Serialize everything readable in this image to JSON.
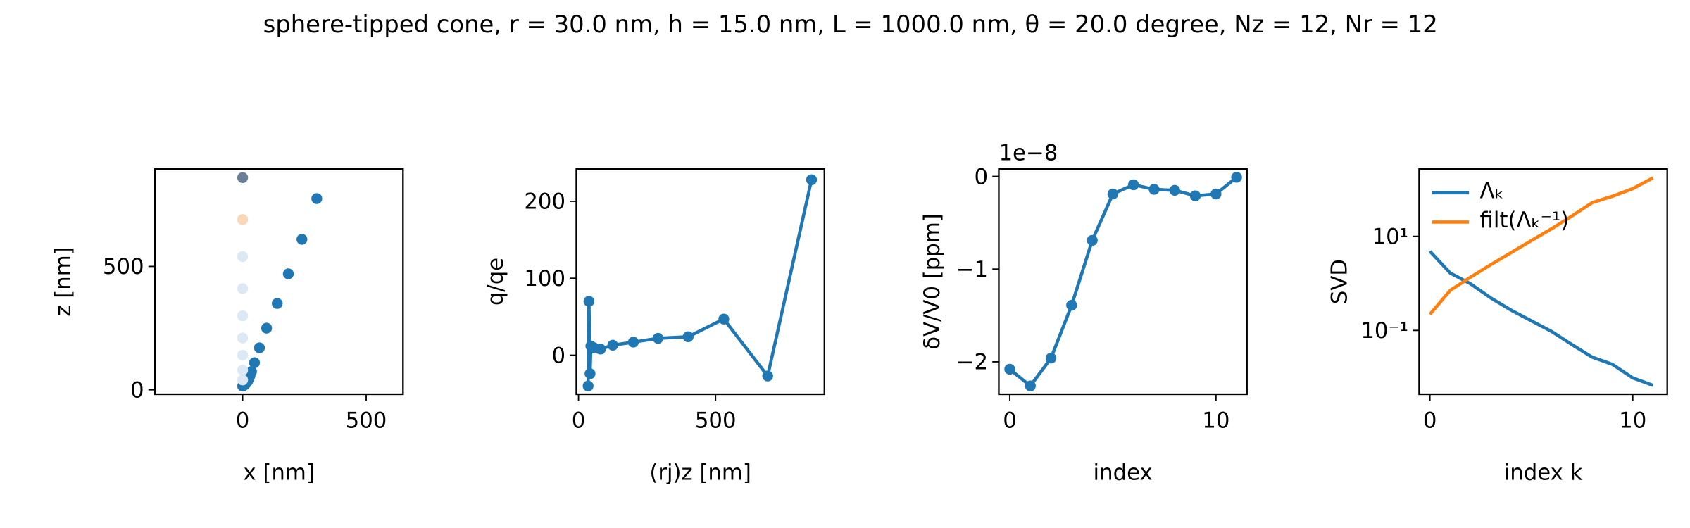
{
  "title": "sphere-tipped cone, r = 30.0 nm, h = 15.0 nm, L = 1000.0 nm, θ = 20.0 degree, Nz = 12, Nr = 12",
  "chart_data": [
    {
      "type": "scatter",
      "xlabel": "x [nm]",
      "ylabel": "z [nm]",
      "xlim": [
        -355,
        649
      ],
      "ylim": [
        -18,
        895
      ],
      "xticks": [
        0,
        500
      ],
      "yticks": [
        0,
        500
      ],
      "series": [
        {
          "color": "#1f77b4",
          "x": [
            0,
            5,
            10,
            15,
            20,
            25,
            30,
            36,
            48,
            68,
            97,
            140,
            185,
            240,
            300
          ],
          "values": [
            15,
            18,
            22,
            27,
            34,
            44,
            57,
            74,
            110,
            170,
            250,
            350,
            470,
            610,
            775
          ]
        },
        {
          "colors": [
            "#6b7f99",
            "#fbd7b8",
            "#dce9f4",
            "#dce9f4",
            "#dce9f4",
            "#dce9f4",
            "#dce9f4",
            "#dce9f4",
            "#dce9f4"
          ],
          "x": [
            0,
            0,
            0,
            0,
            0,
            0,
            0,
            0,
            0
          ],
          "values": [
            860,
            690,
            540,
            410,
            300,
            210,
            140,
            80,
            40
          ]
        }
      ]
    },
    {
      "type": "line",
      "markers": true,
      "xlabel": "(rj)z [nm]",
      "ylabel": "q/qe",
      "xlim": [
        -8,
        897
      ],
      "ylim": [
        -50.7,
        242
      ],
      "xticks": [
        0,
        500
      ],
      "yticks": [
        0,
        100,
        200
      ],
      "series": [
        {
          "color": "#1f77b4",
          "x": [
            35,
            38,
            42,
            45,
            55,
            80,
            125,
            200,
            290,
            400,
            530,
            690,
            850
          ],
          "values": [
            -40,
            70,
            -24,
            12,
            10,
            8,
            13,
            17,
            22,
            24,
            47,
            -27,
            228
          ]
        }
      ]
    },
    {
      "type": "line",
      "markers": true,
      "xlabel": "index",
      "ylabel": "δV/V0 [ppm]",
      "offset_text": "1e−8",
      "xlim": [
        -0.53,
        11.5
      ],
      "ylim": [
        -2.35,
        0.08
      ],
      "xticks": [
        0,
        10
      ],
      "yticks": [
        0,
        {
          "value": -1,
          "label": "−1"
        },
        {
          "value": -2,
          "label": "−2"
        }
      ],
      "series": [
        {
          "color": "#1f77b4",
          "x": [
            0,
            1,
            2,
            3,
            4,
            5,
            6,
            7,
            8,
            9,
            10,
            11
          ],
          "values": [
            -2.08,
            -2.26,
            -1.96,
            -1.39,
            -0.69,
            -0.19,
            -0.09,
            -0.14,
            -0.15,
            -0.21,
            -0.19,
            -0.01
          ]
        }
      ]
    },
    {
      "type": "line",
      "markers": false,
      "log_y": true,
      "legend": "upper left",
      "xlabel": "index k",
      "ylabel": "SVD",
      "xlim": [
        -0.53,
        11.7
      ],
      "ylim": [
        0.0044,
        270
      ],
      "xticks": [
        0,
        10
      ],
      "yticks": [
        {
          "value": 10,
          "label": "10¹"
        },
        {
          "value": 0.1,
          "label": "10⁻¹"
        }
      ],
      "series": [
        {
          "name": "Λₖ",
          "color": "#1f77b4",
          "x": [
            0,
            1,
            2,
            3,
            4,
            5,
            6,
            7,
            8,
            9,
            10,
            11
          ],
          "values": [
            4.8,
            1.66,
            0.98,
            0.49,
            0.27,
            0.16,
            0.095,
            0.05,
            0.027,
            0.019,
            0.0098,
            0.0068
          ]
        },
        {
          "name": "filt(Λₖ⁻¹)",
          "color": "#ff7f0e",
          "x": [
            0,
            1,
            2,
            3,
            4,
            5,
            6,
            7,
            8,
            9,
            10,
            11
          ],
          "values": [
            0.22,
            0.71,
            1.35,
            2.5,
            4.5,
            8.1,
            14.5,
            27,
            52,
            71,
            103,
            175
          ]
        }
      ]
    }
  ]
}
